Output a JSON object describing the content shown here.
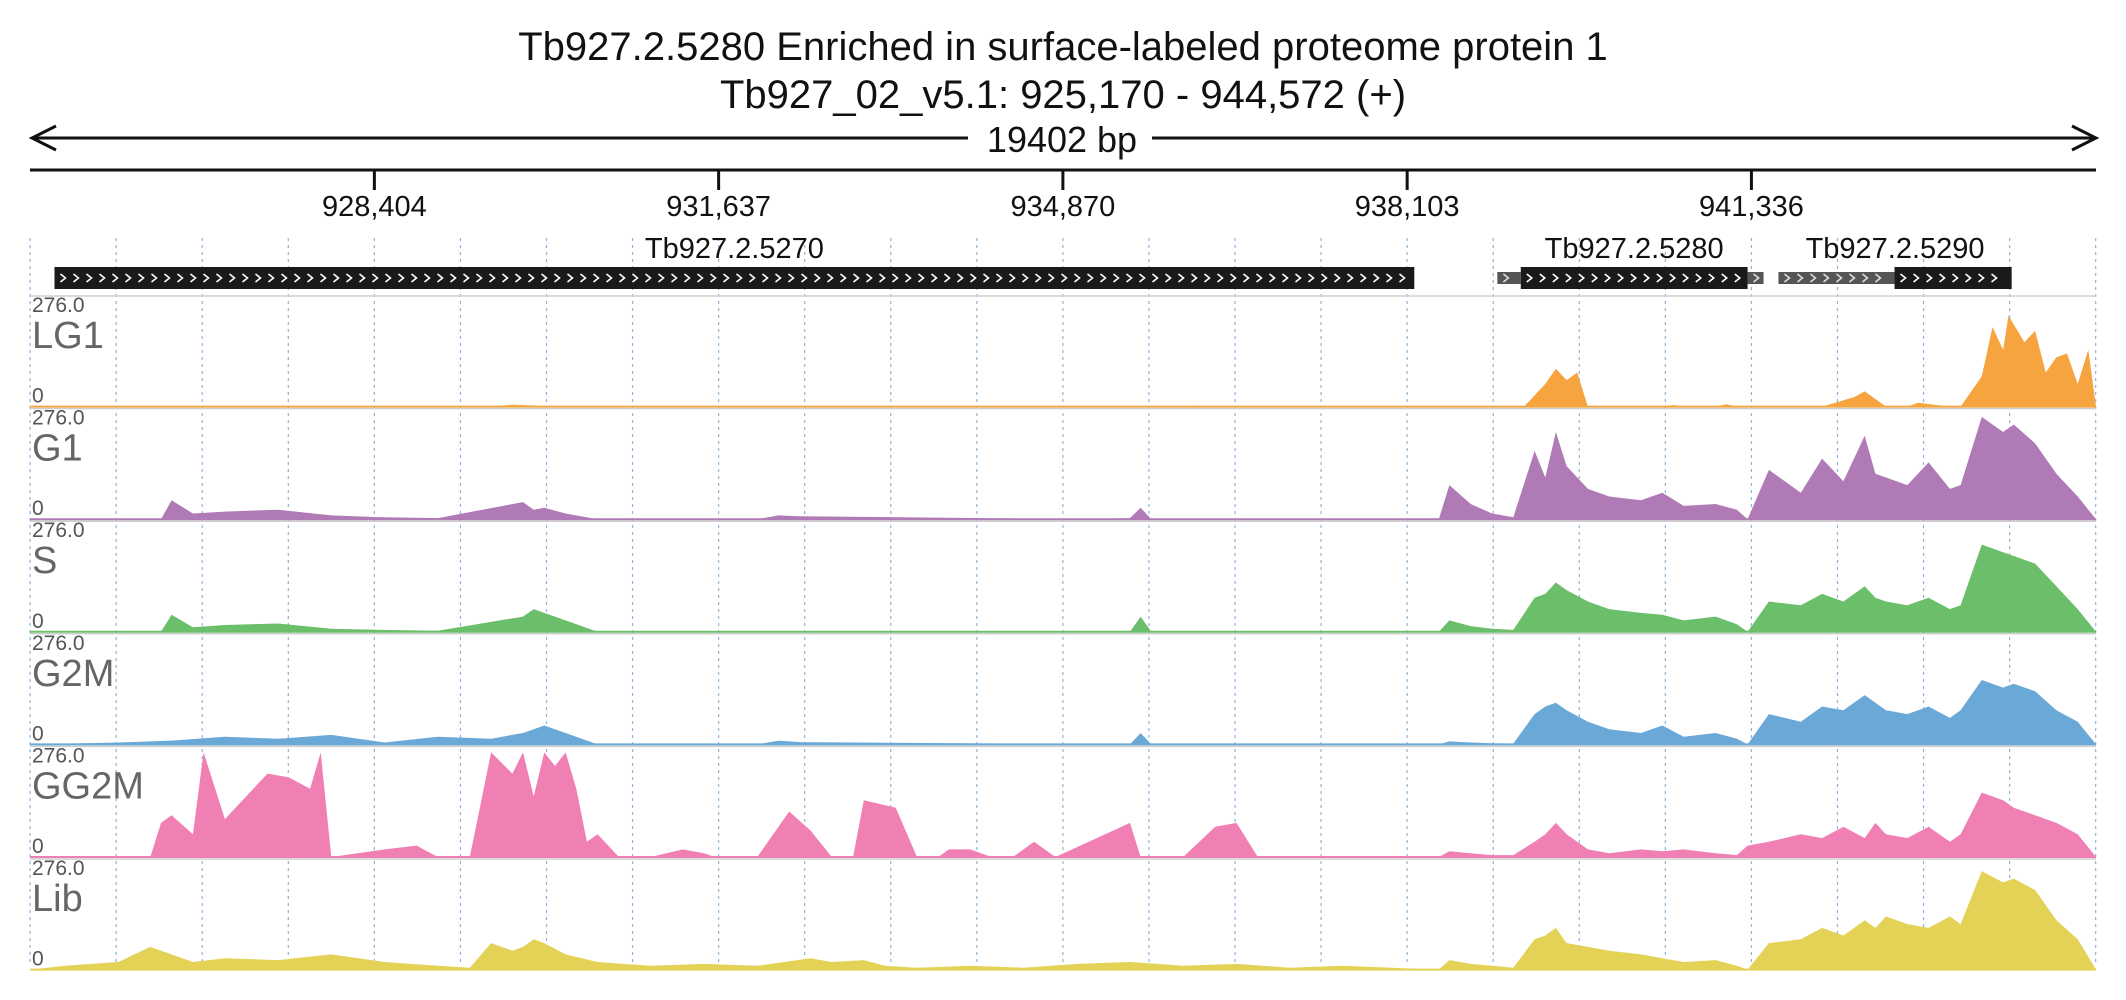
{
  "chart_data": {
    "type": "area",
    "title": "Tb927.2.5280  Enriched in surface-labeled proteome protein 1",
    "subtitle": "Tb927_02_v5.1: 925,170 - 944,572 (+)",
    "span_label": "19402 bp",
    "x_range": [
      925170,
      944572
    ],
    "x_ticks": [
      928404,
      931637,
      934870,
      938103,
      941336
    ],
    "x_tick_labels": [
      "928,404",
      "931,637",
      "934,870",
      "938,103",
      "941,336"
    ],
    "y_range": [
      0,
      276.0
    ],
    "y_max_label": "276.0",
    "y_min_label": "0",
    "genes": [
      {
        "name": "Tb927.2.5270",
        "start": 925400,
        "end": 938170,
        "utr5": [
          925400,
          925530
        ],
        "strand": "+"
      },
      {
        "name": "Tb927.2.5280",
        "start": 939170,
        "end": 941300,
        "utr5": [
          938950,
          939170
        ],
        "utr3": [
          941300,
          941450
        ],
        "strand": "+"
      },
      {
        "name": "Tb927.2.5290",
        "start": 942680,
        "end": 943780,
        "utr5": [
          941590,
          942680
        ],
        "strand": "+"
      }
    ],
    "tracks": [
      {
        "name": "LG1",
        "color": "#F6A43F",
        "x": [
          925170,
          929500,
          929700,
          929900,
          930000,
          936000,
          936100,
          936200,
          938500,
          939200,
          939400,
          939500,
          939600,
          939700,
          939800,
          939900,
          940500,
          940600,
          940700,
          941000,
          941100,
          941200,
          942000,
          942300,
          942400,
          942500,
          942600,
          942800,
          942900,
          943200,
          943300,
          943500,
          943600,
          943700,
          943750,
          943900,
          944000,
          944100,
          944200,
          944300,
          944400,
          944500,
          944572
        ],
        "values": [
          0,
          0,
          5,
          3,
          0,
          0,
          2,
          0,
          0,
          0,
          60,
          100,
          70,
          90,
          0,
          0,
          0,
          4,
          0,
          0,
          6,
          0,
          0,
          25,
          40,
          20,
          0,
          0,
          10,
          0,
          0,
          80,
          210,
          150,
          240,
          170,
          200,
          90,
          130,
          140,
          60,
          150,
          0
        ]
      },
      {
        "name": "G1",
        "color": "#B07AB6",
        "x": [
          925170,
          926400,
          926500,
          926700,
          927000,
          927500,
          928000,
          928500,
          929000,
          929800,
          929900,
          930000,
          930200,
          930500,
          932000,
          932200,
          932400,
          935000,
          935500,
          935600,
          935700,
          938400,
          938500,
          938700,
          938900,
          939100,
          939300,
          939400,
          939500,
          939600,
          939800,
          940000,
          940300,
          940500,
          940700,
          941000,
          941200,
          941300,
          941500,
          941800,
          942000,
          942200,
          942400,
          942500,
          942600,
          942800,
          943000,
          943200,
          943300,
          943500,
          943700,
          943800,
          944000,
          944200,
          944400,
          944572
        ],
        "values": [
          0,
          0,
          50,
          15,
          20,
          25,
          10,
          5,
          3,
          45,
          25,
          30,
          15,
          0,
          0,
          10,
          8,
          0,
          3,
          30,
          0,
          0,
          90,
          40,
          15,
          5,
          180,
          110,
          230,
          140,
          80,
          60,
          50,
          70,
          35,
          40,
          25,
          0,
          130,
          70,
          160,
          100,
          220,
          120,
          110,
          90,
          150,
          80,
          90,
          270,
          230,
          250,
          200,
          120,
          60,
          0
        ]
      },
      {
        "name": "S",
        "color": "#6CBF6A",
        "x": [
          925170,
          926400,
          926500,
          926700,
          927000,
          927500,
          928000,
          928500,
          929000,
          929800,
          929900,
          930000,
          930200,
          930500,
          935500,
          935600,
          935700,
          938400,
          938500,
          938700,
          938900,
          939100,
          939300,
          939400,
          939500,
          939600,
          939800,
          940000,
          940300,
          940500,
          940700,
          941000,
          941200,
          941300,
          941500,
          941800,
          942000,
          942200,
          942400,
          942500,
          942600,
          942800,
          943000,
          943200,
          943300,
          943500,
          943700,
          943800,
          944000,
          944200,
          944400,
          944572
        ],
        "values": [
          0,
          0,
          45,
          12,
          18,
          22,
          8,
          5,
          3,
          40,
          60,
          50,
          30,
          0,
          0,
          40,
          0,
          0,
          30,
          15,
          8,
          5,
          90,
          100,
          130,
          110,
          80,
          60,
          50,
          45,
          30,
          40,
          20,
          0,
          80,
          70,
          100,
          80,
          120,
          90,
          80,
          70,
          90,
          60,
          70,
          230,
          210,
          200,
          180,
          120,
          60,
          0
        ]
      },
      {
        "name": "G2M",
        "color": "#6AA8D8",
        "x": [
          925170,
          926000,
          926500,
          927000,
          927500,
          928000,
          928500,
          929000,
          929500,
          929800,
          929900,
          930000,
          930200,
          930500,
          932000,
          932200,
          932400,
          935500,
          935600,
          935700,
          938400,
          938500,
          938700,
          938900,
          939100,
          939300,
          939400,
          939500,
          939600,
          939800,
          940000,
          940300,
          940500,
          940700,
          941000,
          941200,
          941300,
          941500,
          941800,
          942000,
          942200,
          942400,
          942500,
          942600,
          942800,
          943000,
          943200,
          943300,
          943500,
          943700,
          943800,
          944000,
          944200,
          944400,
          944572
        ],
        "values": [
          0,
          5,
          10,
          20,
          15,
          25,
          5,
          20,
          15,
          30,
          40,
          50,
          30,
          0,
          0,
          10,
          6,
          0,
          30,
          0,
          0,
          8,
          5,
          3,
          2,
          80,
          100,
          110,
          90,
          60,
          40,
          30,
          50,
          20,
          30,
          15,
          0,
          80,
          60,
          100,
          90,
          130,
          110,
          90,
          80,
          100,
          70,
          90,
          170,
          150,
          160,
          140,
          90,
          60,
          0
        ]
      },
      {
        "name": "GG2M",
        "color": "#F07FB4",
        "x": [
          925170,
          926000,
          926300,
          926400,
          926500,
          926700,
          926800,
          927000,
          927200,
          927400,
          927600,
          927800,
          927900,
          928000,
          928500,
          928800,
          929000,
          929300,
          929500,
          929700,
          929800,
          929900,
          930000,
          930100,
          930200,
          930300,
          930400,
          930500,
          930700,
          931000,
          931300,
          931500,
          931600,
          931800,
          932000,
          932300,
          932500,
          932700,
          932900,
          933000,
          933300,
          933500,
          933700,
          933800,
          934000,
          934200,
          934400,
          934600,
          934800,
          935500,
          935600,
          935700,
          936000,
          936300,
          936500,
          936700,
          936800,
          937000,
          938400,
          938500,
          938700,
          938900,
          939100,
          939300,
          939400,
          939500,
          939600,
          939800,
          940000,
          940300,
          940500,
          940700,
          941000,
          941200,
          941300,
          941500,
          941800,
          942000,
          942200,
          942400,
          942500,
          942600,
          942800,
          943000,
          943200,
          943300,
          943500,
          943700,
          943800,
          944000,
          944200,
          944400,
          944572
        ],
        "values": [
          0,
          0,
          0,
          90,
          110,
          60,
          276,
          100,
          160,
          220,
          210,
          180,
          276,
          0,
          20,
          30,
          0,
          0,
          276,
          220,
          276,
          160,
          276,
          240,
          276,
          180,
          40,
          60,
          0,
          0,
          20,
          10,
          0,
          0,
          0,
          120,
          70,
          0,
          0,
          150,
          130,
          0,
          0,
          20,
          20,
          0,
          0,
          40,
          0,
          90,
          0,
          0,
          0,
          80,
          90,
          0,
          0,
          0,
          0,
          15,
          10,
          5,
          5,
          40,
          60,
          90,
          60,
          20,
          10,
          20,
          15,
          20,
          10,
          5,
          30,
          40,
          60,
          50,
          80,
          50,
          90,
          60,
          50,
          80,
          40,
          60,
          170,
          150,
          130,
          110,
          90,
          60,
          0
        ]
      },
      {
        "name": "Lib",
        "color": "#E3D256",
        "x": [
          925170,
          925500,
          926000,
          926300,
          926500,
          926700,
          927000,
          927500,
          928000,
          928500,
          929000,
          929300,
          929500,
          929700,
          929800,
          929900,
          930000,
          930200,
          930500,
          931000,
          931500,
          932000,
          932500,
          932700,
          933000,
          933200,
          933500,
          934000,
          934500,
          935000,
          935500,
          936000,
          936500,
          937000,
          937500,
          938400,
          938500,
          938700,
          938900,
          939100,
          939300,
          939400,
          939500,
          939600,
          939800,
          940000,
          940300,
          940500,
          940700,
          941000,
          941200,
          941300,
          941500,
          941800,
          942000,
          942200,
          942400,
          942500,
          942600,
          942800,
          943000,
          943200,
          943300,
          943500,
          943700,
          943800,
          944000,
          944200,
          944400,
          944572
        ],
        "values": [
          0,
          10,
          20,
          60,
          40,
          20,
          30,
          25,
          40,
          20,
          10,
          5,
          70,
          50,
          60,
          80,
          70,
          40,
          20,
          10,
          15,
          10,
          30,
          20,
          25,
          10,
          5,
          10,
          5,
          15,
          20,
          10,
          15,
          5,
          10,
          0,
          25,
          15,
          10,
          5,
          80,
          90,
          110,
          70,
          60,
          50,
          40,
          30,
          20,
          25,
          10,
          0,
          70,
          80,
          110,
          90,
          130,
          110,
          140,
          120,
          110,
          140,
          120,
          260,
          230,
          240,
          210,
          130,
          80,
          0
        ]
      }
    ]
  }
}
